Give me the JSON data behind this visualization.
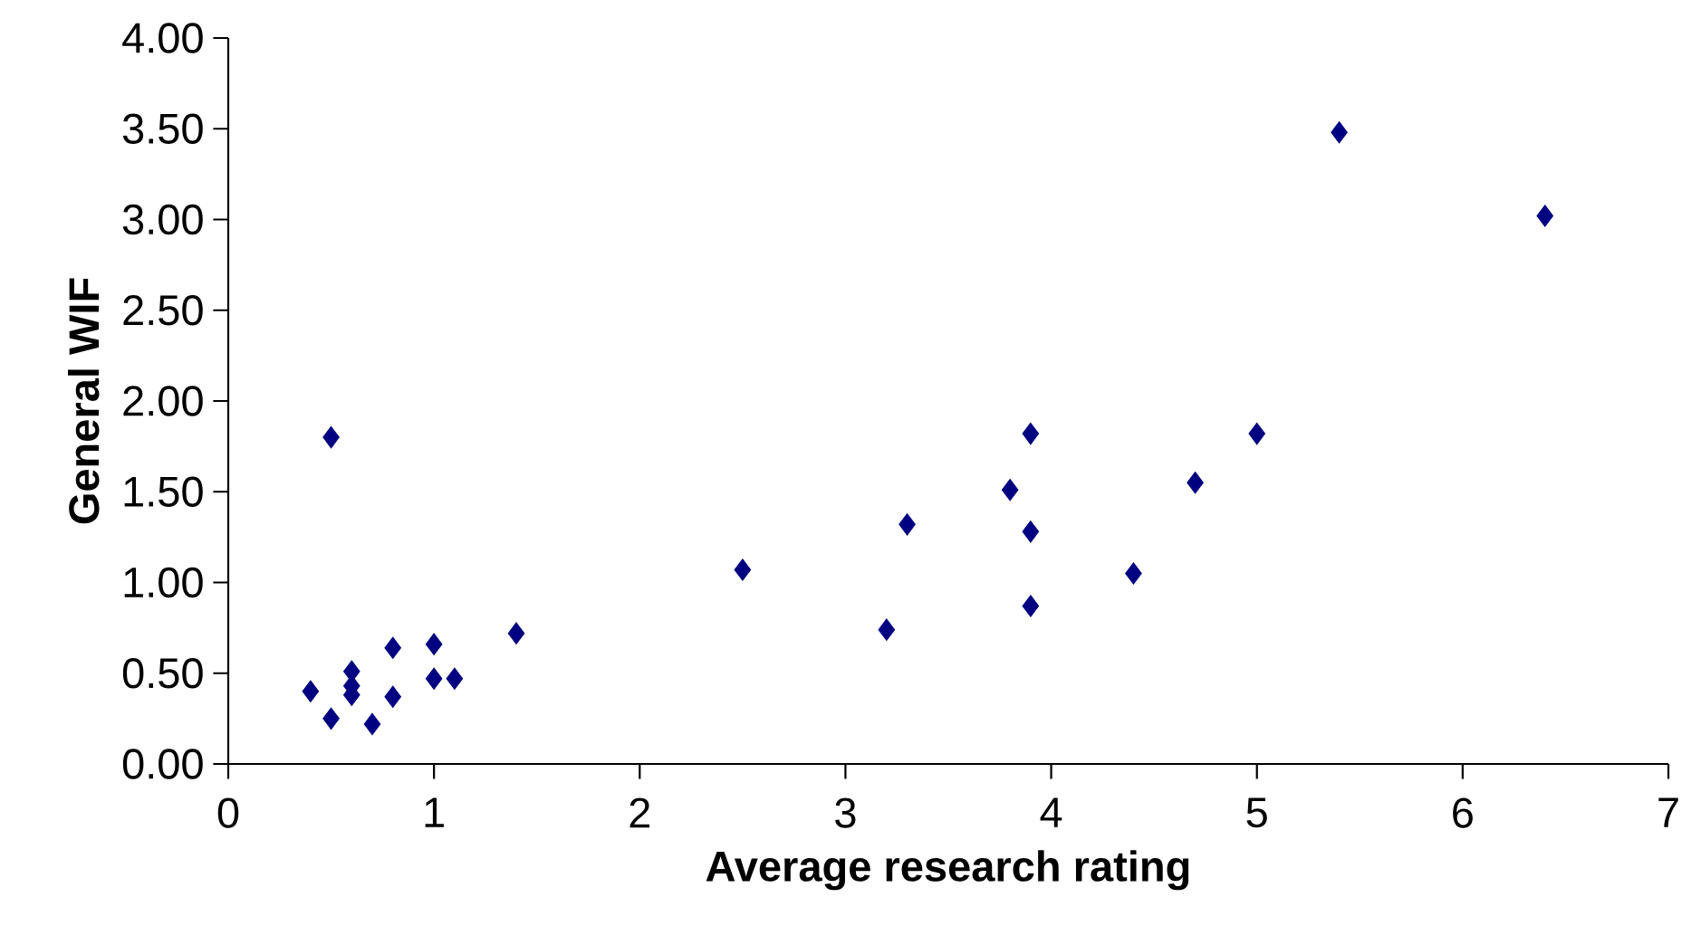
{
  "chart_data": {
    "type": "scatter",
    "xlabel": "Average research rating",
    "ylabel": "General WIF",
    "x": [
      0.4,
      0.5,
      0.5,
      0.6,
      0.6,
      0.6,
      0.7,
      0.8,
      0.8,
      1.0,
      1.0,
      1.1,
      1.4,
      2.5,
      3.2,
      3.3,
      3.8,
      3.9,
      3.9,
      3.9,
      4.4,
      4.7,
      5.0,
      5.4,
      6.4
    ],
    "values": [
      0.4,
      0.25,
      1.8,
      0.51,
      0.43,
      0.38,
      0.22,
      0.64,
      0.37,
      0.66,
      0.47,
      0.47,
      0.72,
      1.07,
      0.74,
      1.32,
      1.51,
      1.82,
      1.28,
      0.87,
      1.05,
      1.55,
      1.82,
      3.48,
      3.02
    ],
    "color": "#000080",
    "marker": "diamond",
    "xlim": [
      0,
      7
    ],
    "xticks": [
      0,
      1,
      2,
      3,
      4,
      5,
      6,
      7
    ],
    "ylim": [
      0,
      4
    ],
    "yticks": [
      {
        "value": 0,
        "label": "0.00"
      },
      {
        "value": 0.5,
        "label": "0.50"
      },
      {
        "value": 1,
        "label": "1.00"
      },
      {
        "value": 1.5,
        "label": "1.50"
      },
      {
        "value": 2,
        "label": "2.00"
      },
      {
        "value": 2.5,
        "label": "2.50"
      },
      {
        "value": 3,
        "label": "3.00"
      },
      {
        "value": 3.5,
        "label": "3.50"
      },
      {
        "value": 4,
        "label": "4.00"
      }
    ]
  }
}
